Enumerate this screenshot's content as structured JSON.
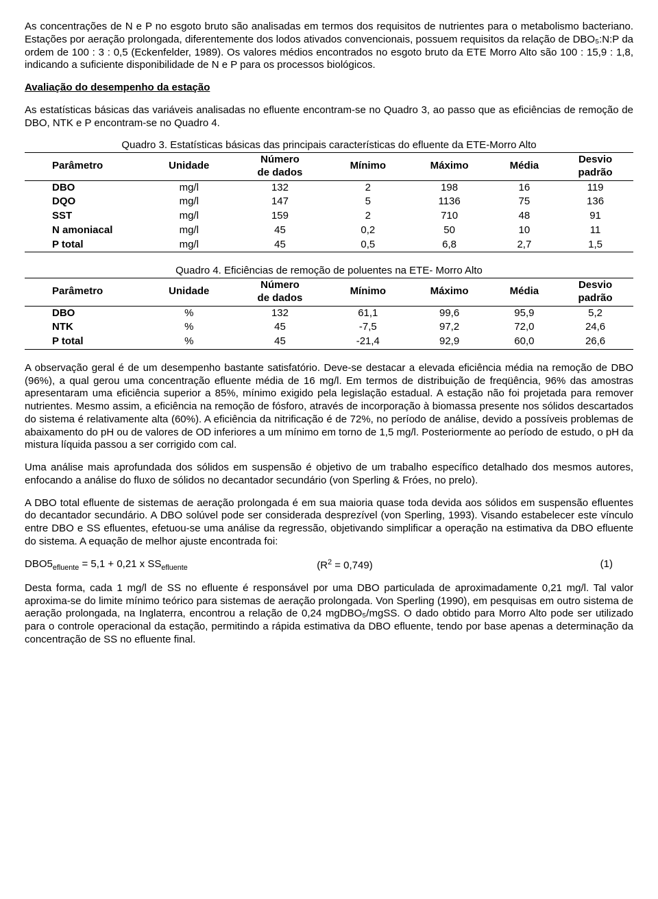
{
  "paragraphs": {
    "p1": "As concentrações de N e P no esgoto bruto são analisadas em termos dos requisitos de nutrientes para o metabolismo bacteriano. Estações por aeração prolongada, diferentemente dos lodos ativados convencionais, possuem requisitos da relação de DBO₅:N:P da ordem de 100 : 3 : 0,5 (Eckenfelder, 1989). Os valores médios encontrados no esgoto bruto da ETE Morro Alto são 100 : 15,9 : 1,8, indicando a suficiente disponibilidade de N e P para os processos biológicos.",
    "section_title": "Avaliação do desempenho da estação",
    "p2": "As estatísticas básicas das variáveis analisadas no efluente encontram-se no Quadro 3, ao passo que as eficiências de remoção de DBO, NTK e P encontram-se no Quadro 4.",
    "p3": "A observação geral é de um desempenho bastante satisfatório. Deve-se destacar a elevada eficiência média na remoção de DBO (96%), a qual gerou uma concentração efluente média de 16 mg/l. Em termos de distribuição de freqüência, 96% das amostras apresentaram uma eficiência superior a 85%, mínimo exigido pela legislação estadual. A estação não foi projetada para remover nutrientes. Mesmo assim, a eficiência na remoção de fósforo, através de incorporação à biomassa presente nos sólidos descartados do sistema é relativamente alta (60%). A eficiência da nitrificação é de 72%, no período de análise, devido a possíveis problemas de abaixamento do pH ou de valores de OD inferiores a um mínimo em torno de 1,5 mg/l. Posteriormente ao período de estudo, o pH da mistura líquida passou a ser corrigido com cal.",
    "p4": "Uma análise mais aprofundada dos sólidos em suspensão é objetivo de um trabalho específico detalhado dos mesmos autores, enfocando a análise do fluxo de sólidos no decantador secundário (von Sperling & Fróes, no prelo).",
    "p5": "A DBO total efluente de sistemas de aeração prolongada é em sua maioria quase toda devida aos sólidos em suspensão efluentes do decantador secundário. A DBO solúvel pode ser considerada desprezível (von Sperling, 1993). Visando estabelecer este vínculo entre DBO e SS efluentes, efetuou-se uma análise da regressão, objetivando simplificar a operação na estimativa da DBO efluente do sistema. A equação de melhor ajuste encontrada foi:",
    "p6": "Desta forma, cada 1 mg/l de SS no efluente é responsável por uma DBO particulada de aproximadamente 0,21 mg/l. Tal valor aproxima-se do limite mínimo teórico para sistemas de aeração prolongada. Von Sperling (1990), em pesquisas em outro sistema de aeração prolongada, na Inglaterra, encontrou a relação de 0,24 mgDBO₅/mgSS. O dado obtido para Morro Alto pode ser utilizado para o controle operacional da estação, permitindo a rápida estimativa da DBO efluente, tendo por base apenas a determinação da concentração de SS no efluente final."
  },
  "table3": {
    "caption": "Quadro 3. Estatísticas básicas das principais características do efluente da ETE-Morro Alto",
    "headers": [
      "Parâmetro",
      "Unidade",
      "Número de dados",
      "Mínimo",
      "Máximo",
      "Média",
      "Desvio padrão"
    ],
    "rows": [
      [
        "DBO",
        "mg/l",
        "132",
        "2",
        "198",
        "16",
        "119"
      ],
      [
        "DQO",
        "mg/l",
        "147",
        "5",
        "1136",
        "75",
        "136"
      ],
      [
        "SST",
        "mg/l",
        "159",
        "2",
        "710",
        "48",
        "91"
      ],
      [
        "N amoniacal",
        "mg/l",
        "45",
        "0,2",
        "50",
        "10",
        "11"
      ],
      [
        "P total",
        "mg/l",
        "45",
        "0,5",
        "6,8",
        "2,7",
        "1,5"
      ]
    ]
  },
  "table4": {
    "caption": "Quadro 4. Eficiências de remoção de poluentes na ETE- Morro Alto",
    "headers": [
      "Parâmetro",
      "Unidade",
      "Número de dados",
      "Mínimo",
      "Máximo",
      "Média",
      "Desvio padrão"
    ],
    "rows": [
      [
        "DBO",
        "%",
        "132",
        "61,1",
        "99,6",
        "95,9",
        "5,2"
      ],
      [
        "NTK",
        "%",
        "45",
        "-7,5",
        "97,2",
        "72,0",
        "24,6"
      ],
      [
        "P total",
        "%",
        "45",
        "-21,4",
        "92,9",
        "60,0",
        "26,6"
      ]
    ]
  },
  "equation": {
    "lhs_main": "DBO5",
    "lhs_sub": "efluente",
    "rhs_pre": " = 5,1 + 0,21 x SS",
    "rhs_sub": "efluente",
    "r2_label": "(R",
    "r2_sup": "2",
    "r2_rest": " = 0,749)",
    "num": "(1)"
  }
}
